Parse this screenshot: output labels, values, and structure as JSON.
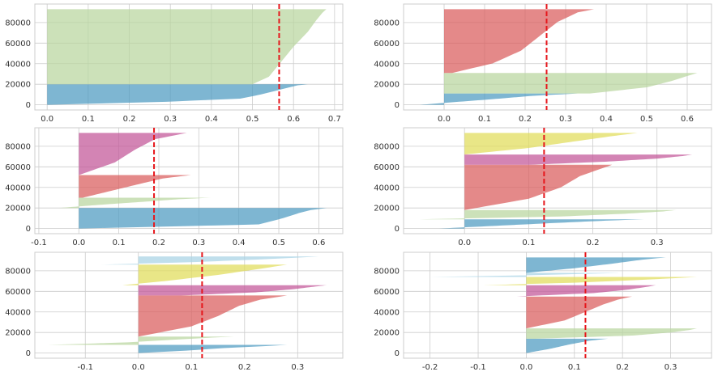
{
  "colors": {
    "blue": "#4C9AC0",
    "green": "#B9D69E",
    "red": "#D95C5C",
    "pink": "#C25497",
    "yellow": "#E1DD59",
    "lightblue": "#A7D3E5",
    "avg_line": "#E6161B"
  },
  "chart_data": [
    {
      "type": "area",
      "title": "",
      "xlabel": "",
      "ylabel": "",
      "xlim": [
        -0.03,
        0.72
      ],
      "ylim": [
        -5000,
        98000
      ],
      "xticks": [
        0.0,
        0.1,
        0.2,
        0.3,
        0.4,
        0.5,
        0.6,
        0.7
      ],
      "xtick_labels": [
        "0.0",
        "0.1",
        "0.2",
        "0.3",
        "0.4",
        "0.5",
        "0.6",
        "0.7"
      ],
      "yticks": [
        0,
        20000,
        40000,
        60000,
        80000
      ],
      "ytick_labels": [
        "0",
        "20000",
        "40000",
        "60000",
        "80000"
      ],
      "grid": true,
      "average": 0.565,
      "clusters": [
        {
          "color": "blue",
          "start": 0,
          "end": 20000,
          "curve": [
            [
              0,
              0.0
            ],
            [
              0.15,
              0.29
            ],
            [
              0.3,
              0.47
            ],
            [
              0.5,
              0.52
            ],
            [
              0.7,
              0.56
            ],
            [
              0.85,
              0.59
            ],
            [
              0.95,
              0.61
            ],
            [
              1,
              0.635
            ]
          ]
        },
        {
          "color": "green",
          "start": 20000,
          "end": 93000,
          "curve": [
            [
              0,
              0.5
            ],
            [
              0.1,
              0.54
            ],
            [
              0.3,
              0.57
            ],
            [
              0.5,
              0.6
            ],
            [
              0.7,
              0.635
            ],
            [
              0.85,
              0.655
            ],
            [
              0.95,
              0.67
            ],
            [
              1,
              0.68
            ]
          ]
        }
      ]
    },
    {
      "type": "area",
      "title": "",
      "xlabel": "",
      "ylabel": "",
      "xlim": [
        -0.1,
        0.66
      ],
      "ylim": [
        -5000,
        98000
      ],
      "xticks": [
        0.0,
        0.1,
        0.2,
        0.3,
        0.4,
        0.5,
        0.6
      ],
      "xtick_labels": [
        "0.0",
        "0.1",
        "0.2",
        "0.3",
        "0.4",
        "0.5",
        "0.6"
      ],
      "yticks": [
        0,
        20000,
        40000,
        60000,
        80000
      ],
      "ytick_labels": [
        "0",
        "20000",
        "40000",
        "60000",
        "80000"
      ],
      "grid": true,
      "average": 0.253,
      "clusters": [
        {
          "color": "blue",
          "start": 0,
          "end": 11000,
          "curve": [
            [
              0,
              -0.06
            ],
            [
              0.2,
              0.01
            ],
            [
              0.5,
              0.12
            ],
            [
              0.8,
              0.22
            ],
            [
              1,
              0.33
            ]
          ]
        },
        {
          "color": "green",
          "start": 11000,
          "end": 31000,
          "curve": [
            [
              0,
              0.36
            ],
            [
              0.3,
              0.5
            ],
            [
              0.6,
              0.56
            ],
            [
              0.85,
              0.6
            ],
            [
              1,
              0.625
            ]
          ]
        },
        {
          "color": "red",
          "start": 31000,
          "end": 93000,
          "curve": [
            [
              0,
              0.02
            ],
            [
              0.15,
              0.12
            ],
            [
              0.35,
              0.19
            ],
            [
              0.6,
              0.24
            ],
            [
              0.8,
              0.28
            ],
            [
              0.95,
              0.33
            ],
            [
              1,
              0.37
            ]
          ]
        }
      ]
    },
    {
      "type": "area",
      "title": "",
      "xlabel": "",
      "ylabel": "",
      "xlim": [
        -0.11,
        0.66
      ],
      "ylim": [
        -5000,
        98000
      ],
      "xticks": [
        -0.1,
        0.0,
        0.1,
        0.2,
        0.3,
        0.4,
        0.5,
        0.6
      ],
      "xtick_labels": [
        "-0.1",
        "0.0",
        "0.1",
        "0.2",
        "0.3",
        "0.4",
        "0.5",
        "0.6"
      ],
      "yticks": [
        0,
        20000,
        40000,
        60000,
        80000
      ],
      "ytick_labels": [
        "0",
        "20000",
        "40000",
        "60000",
        "80000"
      ],
      "grid": true,
      "average": 0.188,
      "clusters": [
        {
          "color": "blue",
          "start": 0,
          "end": 20000,
          "curve": [
            [
              0,
              0.0
            ],
            [
              0.2,
              0.45
            ],
            [
              0.5,
              0.51
            ],
            [
              0.75,
              0.55
            ],
            [
              0.9,
              0.58
            ],
            [
              1,
              0.62
            ]
          ]
        },
        {
          "color": "green",
          "start": 20000,
          "end": 30000,
          "curve": [
            [
              0,
              -0.05
            ],
            [
              0.3,
              0.05
            ],
            [
              0.6,
              0.16
            ],
            [
              0.85,
              0.25
            ],
            [
              1,
              0.33
            ]
          ]
        },
        {
          "color": "red",
          "start": 30000,
          "end": 52000,
          "curve": [
            [
              0,
              0.01
            ],
            [
              0.3,
              0.08
            ],
            [
              0.6,
              0.15
            ],
            [
              0.85,
              0.21
            ],
            [
              1,
              0.28
            ]
          ]
        },
        {
          "color": "pink",
          "start": 52000,
          "end": 93000,
          "curve": [
            [
              0,
              0.0
            ],
            [
              0.3,
              0.09
            ],
            [
              0.6,
              0.14
            ],
            [
              0.85,
              0.19
            ],
            [
              1,
              0.27
            ]
          ]
        }
      ]
    },
    {
      "type": "area",
      "title": "",
      "xlabel": "",
      "ylabel": "",
      "xlim": [
        -0.095,
        0.385
      ],
      "ylim": [
        -5000,
        98000
      ],
      "xticks": [
        0.0,
        0.1,
        0.2,
        0.3
      ],
      "xtick_labels": [
        "0.0",
        "0.1",
        "0.2",
        "0.3"
      ],
      "yticks": [
        0,
        20000,
        40000,
        60000,
        80000
      ],
      "ytick_labels": [
        "0",
        "20000",
        "40000",
        "60000",
        "80000"
      ],
      "grid": true,
      "average": 0.124,
      "clusters": [
        {
          "color": "blue",
          "start": 0,
          "end": 9000,
          "curve": [
            [
              0,
              -0.04
            ],
            [
              0.3,
              0.05
            ],
            [
              0.6,
              0.14
            ],
            [
              0.85,
              0.22
            ],
            [
              1,
              0.28
            ]
          ]
        },
        {
          "color": "green",
          "start": 9000,
          "end": 18000,
          "curve": [
            [
              0,
              -0.07
            ],
            [
              0.3,
              0.15
            ],
            [
              0.6,
              0.25
            ],
            [
              0.85,
              0.31
            ],
            [
              1,
              0.33
            ]
          ]
        },
        {
          "color": "red",
          "start": 18000,
          "end": 62000,
          "curve": [
            [
              0,
              0.0
            ],
            [
              0.25,
              0.1
            ],
            [
              0.5,
              0.15
            ],
            [
              0.75,
              0.18
            ],
            [
              0.9,
              0.21
            ],
            [
              1,
              0.23
            ]
          ]
        },
        {
          "color": "pink",
          "start": 62000,
          "end": 72000,
          "curve": [
            [
              0,
              0.1
            ],
            [
              0.3,
              0.22
            ],
            [
              0.6,
              0.3
            ],
            [
              0.85,
              0.34
            ],
            [
              1,
              0.355
            ]
          ]
        },
        {
          "color": "yellow",
          "start": 72000,
          "end": 93000,
          "curve": [
            [
              0,
              0.0
            ],
            [
              0.3,
              0.1
            ],
            [
              0.6,
              0.17
            ],
            [
              0.85,
              0.23
            ],
            [
              1,
              0.27
            ]
          ]
        }
      ]
    },
    {
      "type": "area",
      "title": "",
      "xlabel": "",
      "ylabel": "",
      "xlim": [
        -0.195,
        0.385
      ],
      "ylim": [
        -5000,
        98000
      ],
      "xticks": [
        -0.1,
        0.0,
        0.1,
        0.2,
        0.3
      ],
      "xtick_labels": [
        "-0.1",
        "0.0",
        "0.1",
        "0.2",
        "0.3"
      ],
      "yticks": [
        0,
        20000,
        40000,
        60000,
        80000
      ],
      "ytick_labels": [
        "0",
        "20000",
        "40000",
        "60000",
        "80000"
      ],
      "grid": true,
      "average": 0.12,
      "clusters": [
        {
          "color": "blue",
          "start": 0,
          "end": 8000,
          "curve": [
            [
              0,
              0.0
            ],
            [
              0.3,
              0.09
            ],
            [
              0.6,
              0.16
            ],
            [
              0.85,
              0.24
            ],
            [
              1,
              0.28
            ]
          ]
        },
        {
          "color": "green",
          "start": 8000,
          "end": 16000,
          "curve": [
            [
              0,
              -0.17
            ],
            [
              0.3,
              -0.02
            ],
            [
              0.6,
              0.06
            ],
            [
              0.85,
              0.13
            ],
            [
              1,
              0.18
            ]
          ]
        },
        {
          "color": "red",
          "start": 16000,
          "end": 56000,
          "curve": [
            [
              0,
              0.0
            ],
            [
              0.25,
              0.1
            ],
            [
              0.5,
              0.15
            ],
            [
              0.75,
              0.19
            ],
            [
              0.9,
              0.23
            ],
            [
              1,
              0.28
            ]
          ]
        },
        {
          "color": "pink",
          "start": 56000,
          "end": 66000,
          "curve": [
            [
              0,
              0.08
            ],
            [
              0.3,
              0.22
            ],
            [
              0.6,
              0.29
            ],
            [
              0.85,
              0.33
            ],
            [
              1,
              0.355
            ]
          ]
        },
        {
          "color": "yellow",
          "start": 66000,
          "end": 86000,
          "curve": [
            [
              0,
              -0.03
            ],
            [
              0.2,
              0.05
            ],
            [
              0.5,
              0.15
            ],
            [
              0.8,
              0.23
            ],
            [
              1,
              0.28
            ]
          ]
        },
        {
          "color": "lightblue",
          "start": 86000,
          "end": 94000,
          "curve": [
            [
              0,
              -0.07
            ],
            [
              0.3,
              0.1
            ],
            [
              0.6,
              0.22
            ],
            [
              0.85,
              0.3
            ],
            [
              1,
              0.34
            ]
          ]
        }
      ]
    },
    {
      "type": "area",
      "title": "",
      "xlabel": "",
      "ylabel": "",
      "xlim": [
        -0.255,
        0.385
      ],
      "ylim": [
        -5000,
        98000
      ],
      "xticks": [
        -0.2,
        -0.1,
        0.0,
        0.1,
        0.2,
        0.3
      ],
      "xtick_labels": [
        "-0.2",
        "-0.1",
        "0.0",
        "0.1",
        "0.2",
        "0.3"
      ],
      "yticks": [
        0,
        20000,
        40000,
        60000,
        80000
      ],
      "ytick_labels": [
        "0",
        "20000",
        "40000",
        "60000",
        "80000"
      ],
      "grid": true,
      "average": 0.123,
      "clusters": [
        {
          "color": "blue",
          "start": 0,
          "end": 14000,
          "curve": [
            [
              0,
              0.0
            ],
            [
              0.3,
              0.05
            ],
            [
              0.6,
              0.09
            ],
            [
              0.85,
              0.13
            ],
            [
              1,
              0.17
            ]
          ]
        },
        {
          "color": "green",
          "start": 14000,
          "end": 24000,
          "curve": [
            [
              0,
              0.02
            ],
            [
              0.3,
              0.22
            ],
            [
              0.6,
              0.3
            ],
            [
              0.85,
              0.34
            ],
            [
              1,
              0.355
            ]
          ]
        },
        {
          "color": "red",
          "start": 24000,
          "end": 55000,
          "curve": [
            [
              0,
              0.0
            ],
            [
              0.25,
              0.08
            ],
            [
              0.5,
              0.12
            ],
            [
              0.75,
              0.16
            ],
            [
              0.9,
              0.19
            ],
            [
              1,
              0.22
            ]
          ]
        },
        {
          "color": "pink",
          "start": 55000,
          "end": 66000,
          "curve": [
            [
              0,
              -0.02
            ],
            [
              0.3,
              0.14
            ],
            [
              0.6,
              0.21
            ],
            [
              0.85,
              0.25
            ],
            [
              1,
              0.27
            ]
          ]
        },
        {
          "color": "yellow",
          "start": 66000,
          "end": 74000,
          "curve": [
            [
              0,
              -0.09
            ],
            [
              0.3,
              0.1
            ],
            [
              0.6,
              0.22
            ],
            [
              0.85,
              0.31
            ],
            [
              1,
              0.355
            ]
          ]
        },
        {
          "color": "lightblue",
          "start": 74000,
          "end": 78000,
          "curve": [
            [
              0,
              -0.2
            ],
            [
              0.4,
              0.0
            ],
            [
              0.7,
              0.1
            ],
            [
              1,
              0.2
            ]
          ]
        },
        {
          "color": "blue",
          "start": 78000,
          "end": 93000,
          "curve": [
            [
              0,
              0.0
            ],
            [
              0.3,
              0.1
            ],
            [
              0.6,
              0.18
            ],
            [
              0.85,
              0.24
            ],
            [
              1,
              0.29
            ]
          ]
        }
      ]
    }
  ]
}
